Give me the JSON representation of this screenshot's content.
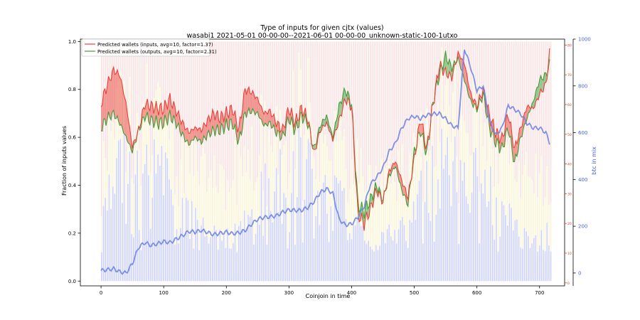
{
  "chart_data": {
    "type": "line",
    "title": "Type of inputs for given cjtx (values)",
    "subtitle": "wasabi1 2021-05-01 00-00-00--2021-06-01 00-00-00_unknown-static-100-1utxo",
    "xlabel": "Coinjoin in time",
    "ylabel": "Fraction of inputs values",
    "y2label": "btc in mix",
    "xlim": [
      -33,
      740
    ],
    "ylim": [
      -0.02,
      1.01
    ],
    "y2lim": [
      -55,
      1000
    ],
    "y3lim": [
      -1,
      82
    ],
    "xticks": [
      0,
      100,
      200,
      300,
      400,
      500,
      600,
      700
    ],
    "yticks": [
      0.0,
      0.2,
      0.4,
      0.6,
      0.8,
      1.0
    ],
    "y2ticks": [
      0,
      200,
      400,
      600,
      800,
      1000
    ],
    "y3ticks": [
      0,
      10,
      20,
      30,
      40,
      50,
      60,
      70,
      80
    ],
    "legend_position": "top-left",
    "legend": [
      "Predicted wallets (inputs, avg=10, factor=1.37)",
      "Predicted wallets (outputs, avg=10, factor=2.31)"
    ],
    "series": [
      {
        "name": "Predicted wallets (inputs, avg=10, factor=1.37)",
        "x": [
          0,
          10,
          20,
          30,
          40,
          50,
          60,
          70,
          80,
          90,
          100,
          110,
          120,
          130,
          140,
          150,
          160,
          170,
          180,
          190,
          200,
          210,
          220,
          230,
          240,
          250,
          260,
          270,
          280,
          290,
          300,
          310,
          320,
          330,
          340,
          350,
          360,
          370,
          380,
          390,
          400,
          410,
          420,
          430,
          440,
          450,
          460,
          470,
          480,
          490,
          500,
          510,
          520,
          530,
          540,
          550,
          560,
          570,
          580,
          590,
          600,
          610,
          620,
          630,
          640,
          650,
          660,
          670,
          680,
          690,
          700,
          710,
          717
        ],
        "values": [
          0.74,
          0.82,
          0.88,
          0.86,
          0.74,
          0.56,
          0.63,
          0.74,
          0.73,
          0.72,
          0.72,
          0.76,
          0.71,
          0.66,
          0.62,
          0.64,
          0.63,
          0.67,
          0.7,
          0.68,
          0.7,
          0.72,
          0.63,
          0.8,
          0.79,
          0.76,
          0.7,
          0.71,
          0.66,
          0.63,
          0.72,
          0.66,
          0.72,
          0.68,
          0.53,
          0.63,
          0.66,
          0.59,
          0.67,
          0.76,
          0.73,
          0.28,
          0.24,
          0.3,
          0.38,
          0.33,
          0.46,
          0.5,
          0.42,
          0.35,
          0.51,
          0.68,
          0.55,
          0.74,
          0.9,
          0.87,
          0.85,
          0.95,
          0.91,
          0.78,
          0.73,
          0.8,
          0.69,
          0.62,
          0.59,
          0.7,
          0.55,
          0.64,
          0.73,
          0.72,
          0.78,
          0.82,
          0.97
        ]
      },
      {
        "name": "Predicted wallets (outputs, avg=10, factor=2.31)",
        "x": [
          0,
          10,
          20,
          30,
          40,
          50,
          60,
          70,
          80,
          90,
          100,
          110,
          120,
          130,
          140,
          150,
          160,
          170,
          180,
          190,
          200,
          210,
          220,
          230,
          240,
          250,
          260,
          270,
          280,
          290,
          300,
          310,
          320,
          330,
          340,
          350,
          360,
          370,
          380,
          390,
          400,
          410,
          420,
          430,
          440,
          450,
          460,
          470,
          480,
          490,
          500,
          510,
          520,
          530,
          540,
          550,
          560,
          570,
          580,
          590,
          600,
          610,
          620,
          630,
          640,
          650,
          660,
          670,
          680,
          690,
          700,
          710,
          717
        ],
        "values": [
          0.64,
          0.68,
          0.7,
          0.66,
          0.6,
          0.54,
          0.63,
          0.69,
          0.67,
          0.66,
          0.66,
          0.69,
          0.66,
          0.61,
          0.57,
          0.6,
          0.58,
          0.61,
          0.63,
          0.63,
          0.65,
          0.66,
          0.58,
          0.7,
          0.71,
          0.7,
          0.65,
          0.66,
          0.62,
          0.6,
          0.68,
          0.63,
          0.69,
          0.66,
          0.55,
          0.65,
          0.69,
          0.6,
          0.73,
          0.8,
          0.74,
          0.32,
          0.29,
          0.34,
          0.4,
          0.34,
          0.44,
          0.48,
          0.38,
          0.32,
          0.54,
          0.63,
          0.53,
          0.75,
          0.86,
          0.94,
          0.89,
          0.93,
          0.84,
          0.75,
          0.72,
          0.78,
          0.64,
          0.58,
          0.55,
          0.64,
          0.49,
          0.6,
          0.68,
          0.75,
          0.84,
          0.86,
          0.91
        ]
      },
      {
        "name": "btc in mix",
        "axis": "right",
        "x": [
          0,
          10,
          20,
          30,
          40,
          50,
          60,
          70,
          80,
          90,
          100,
          110,
          120,
          130,
          140,
          150,
          160,
          170,
          180,
          190,
          200,
          210,
          220,
          230,
          240,
          250,
          260,
          270,
          280,
          290,
          300,
          310,
          320,
          330,
          340,
          350,
          360,
          370,
          380,
          390,
          400,
          410,
          420,
          430,
          440,
          450,
          460,
          470,
          480,
          490,
          500,
          510,
          520,
          530,
          540,
          550,
          560,
          570,
          580,
          590,
          600,
          610,
          620,
          630,
          640,
          650,
          660,
          670,
          680,
          690,
          700,
          710,
          717
        ],
        "values": [
          10,
          14,
          18,
          5,
          0,
          40,
          110,
          130,
          118,
          125,
          135,
          130,
          145,
          160,
          178,
          175,
          182,
          174,
          164,
          170,
          175,
          168,
          172,
          182,
          208,
          230,
          238,
          240,
          245,
          260,
          270,
          268,
          268,
          280,
          305,
          345,
          360,
          340,
          230,
          205,
          210,
          238,
          285,
          380,
          410,
          450,
          520,
          555,
          620,
          660,
          670,
          660,
          675,
          680,
          682,
          660,
          630,
          620,
          960,
          880,
          780,
          800,
          650,
          590,
          620,
          715,
          700,
          680,
          640,
          620,
          620,
          600,
          550
        ]
      }
    ],
    "colors": {
      "inputs": "#e8413a",
      "outputs": "#3f9d3a",
      "btc": "#6f86e3",
      "bars_blue": "#9aa3fb",
      "bars_pink": "#f6c8c8",
      "bars_yellow": "#f7e9a8",
      "red_axis": "#d63a2a"
    }
  }
}
